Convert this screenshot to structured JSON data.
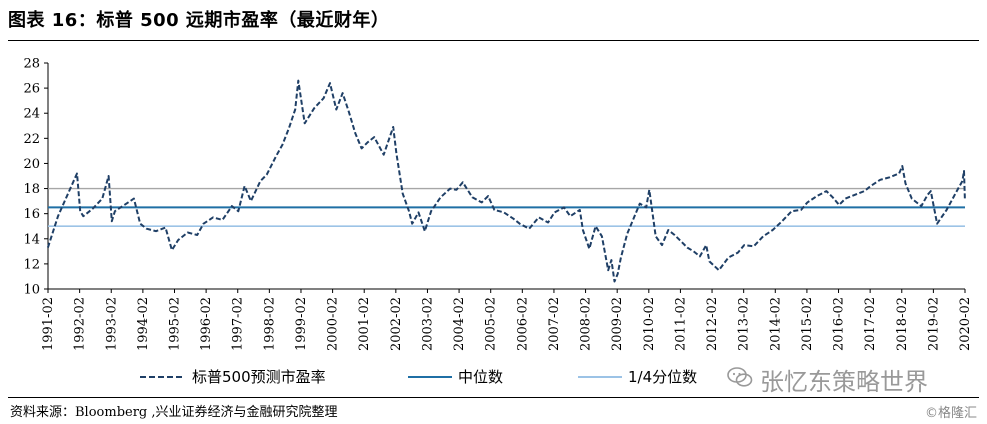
{
  "header": {
    "title": "图表 16：标普 500 远期市盈率（最近财年）"
  },
  "footer": {
    "source": "资料来源：Bloomberg ,兴业证券经济与金融研究院整理",
    "watermark": "张忆东策略世界",
    "credit": "©格隆汇"
  },
  "colors": {
    "series": "#1f3f66",
    "median": "#1f6fa5",
    "quartile": "#9cc3e6",
    "refline": "#a6a6a6"
  },
  "chart_data": {
    "type": "line",
    "title": "",
    "xlabel": "",
    "ylabel": "",
    "ylim": [
      10,
      28
    ],
    "yticks": [
      10,
      12,
      14,
      16,
      18,
      20,
      22,
      24,
      26,
      28
    ],
    "xlim": [
      1991.083,
      2020.083
    ],
    "xticks": [
      "1991-02",
      "1992-02",
      "1993-02",
      "1994-02",
      "1995-02",
      "1996-02",
      "1997-02",
      "1998-02",
      "1999-02",
      "2000-02",
      "2001-02",
      "2002-02",
      "2003-02",
      "2004-02",
      "2005-02",
      "2006-02",
      "2007-02",
      "2008-02",
      "2009-02",
      "2010-02",
      "2011-02",
      "2012-02",
      "2013-02",
      "2014-02",
      "2015-02",
      "2016-02",
      "2017-02",
      "2018-02",
      "2019-02",
      "2020-02"
    ],
    "grid": false,
    "legend_position": "bottom",
    "series": [
      {
        "name": "标普500预测市盈率",
        "style": "dashed",
        "x": [
          1991.08,
          1991.4,
          1991.7,
          1992.0,
          1992.1,
          1992.2,
          1992.5,
          1992.8,
          1993.0,
          1993.1,
          1993.2,
          1993.5,
          1993.8,
          1994.0,
          1994.2,
          1994.5,
          1994.8,
          1995.0,
          1995.2,
          1995.5,
          1995.8,
          1996.0,
          1996.3,
          1996.6,
          1996.9,
          1997.1,
          1997.3,
          1997.5,
          1997.8,
          1998.0,
          1998.3,
          1998.5,
          1998.7,
          1998.9,
          1999.0,
          1999.2,
          1999.5,
          1999.8,
          2000.0,
          2000.2,
          2000.4,
          2000.6,
          2000.8,
          2001.0,
          2001.2,
          2001.4,
          2001.7,
          2002.0,
          2002.1,
          2002.3,
          2002.5,
          2002.6,
          2002.8,
          2003.0,
          2003.2,
          2003.5,
          2003.8,
          2004.0,
          2004.2,
          2004.5,
          2004.8,
          2005.0,
          2005.2,
          2005.5,
          2005.8,
          2006.0,
          2006.3,
          2006.6,
          2006.9,
          2007.1,
          2007.4,
          2007.6,
          2007.9,
          2008.0,
          2008.2,
          2008.4,
          2008.6,
          2008.8,
          2008.9,
          2009.0,
          2009.1,
          2009.2,
          2009.4,
          2009.6,
          2009.8,
          2010.0,
          2010.1,
          2010.3,
          2010.5,
          2010.7,
          2010.9,
          2011.1,
          2011.3,
          2011.5,
          2011.7,
          2011.9,
          2012.0,
          2012.3,
          2012.6,
          2012.9,
          2013.1,
          2013.4,
          2013.7,
          2014.0,
          2014.3,
          2014.6,
          2014.9,
          2015.1,
          2015.4,
          2015.7,
          2015.9,
          2016.1,
          2016.3,
          2016.6,
          2016.9,
          2017.1,
          2017.4,
          2017.7,
          2018.0,
          2018.1,
          2018.2,
          2018.4,
          2018.7,
          2018.9,
          2019.0,
          2019.2,
          2019.5,
          2019.8,
          2020.0,
          2020.05,
          2020.08
        ],
        "values": [
          13.3,
          15.8,
          17.5,
          19.2,
          16.2,
          15.8,
          16.4,
          17.2,
          19.0,
          15.4,
          16.2,
          16.7,
          17.2,
          15.2,
          14.8,
          14.6,
          14.9,
          13.1,
          13.9,
          14.5,
          14.3,
          15.2,
          15.7,
          15.5,
          16.6,
          16.2,
          18.2,
          17.0,
          18.6,
          19.1,
          20.6,
          21.5,
          22.8,
          24.3,
          26.6,
          23.2,
          24.4,
          25.2,
          26.4,
          24.3,
          25.6,
          24.1,
          22.4,
          21.2,
          21.7,
          22.1,
          20.7,
          22.9,
          20.8,
          17.6,
          16.2,
          15.2,
          16.1,
          14.6,
          16.2,
          17.3,
          18.0,
          17.9,
          18.5,
          17.3,
          16.9,
          17.4,
          16.3,
          16.1,
          15.6,
          15.2,
          14.8,
          15.7,
          15.3,
          16.1,
          16.5,
          15.8,
          16.3,
          14.7,
          13.2,
          15.0,
          14.2,
          11.5,
          12.3,
          10.6,
          11.2,
          12.5,
          14.4,
          15.6,
          16.8,
          16.5,
          17.9,
          14.2,
          13.5,
          14.7,
          14.3,
          13.8,
          13.3,
          13.0,
          12.6,
          13.5,
          12.2,
          11.5,
          12.5,
          12.9,
          13.5,
          13.4,
          14.2,
          14.7,
          15.4,
          16.2,
          16.3,
          16.9,
          17.4,
          17.8,
          17.3,
          16.7,
          17.2,
          17.5,
          17.8,
          18.2,
          18.7,
          18.9,
          19.2,
          19.8,
          18.4,
          17.2,
          16.6,
          17.5,
          17.8,
          15.2,
          16.3,
          17.7,
          18.6,
          19.4,
          17.1
        ]
      }
    ],
    "hlines": [
      {
        "name": "中位数",
        "value": 16.5
      },
      {
        "name": "1/4分位数",
        "value": 15.0
      },
      {
        "name": "",
        "value": 18.0
      }
    ]
  }
}
